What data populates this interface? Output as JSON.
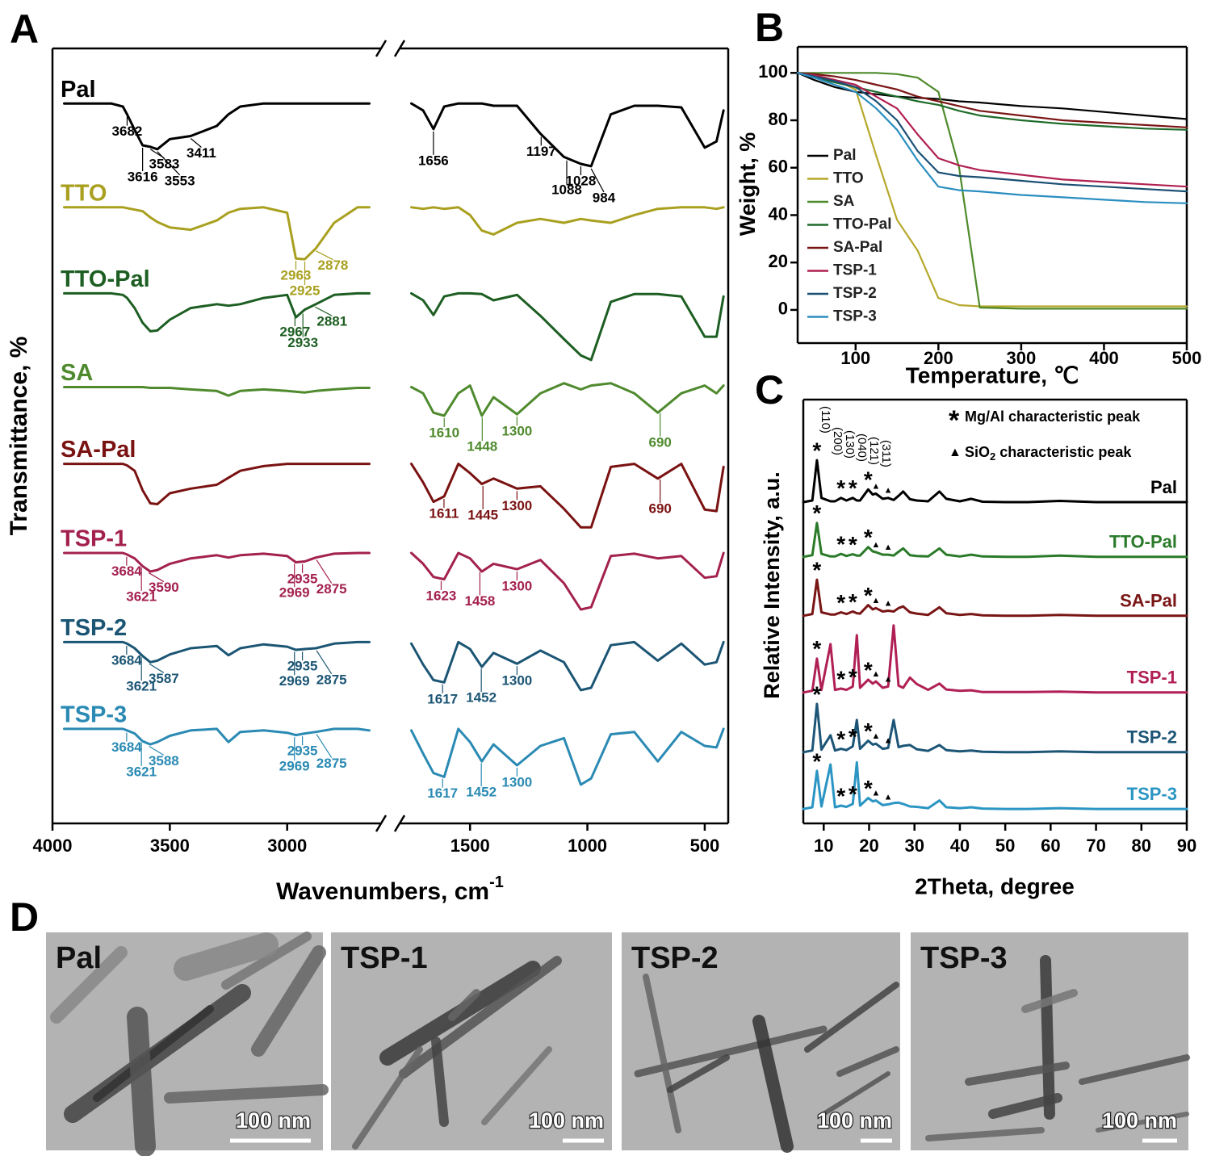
{
  "chart_data": [
    {
      "panel": "A",
      "type": "line",
      "series_labels": "start",
      "xlabel": {
        "text": "Wavenumbers, cm",
        "sup": "-1"
      },
      "ylabel": "Transmittance, %",
      "xlim": [
        4000,
        400
      ],
      "xbreak": [
        2600,
        1800
      ],
      "ylim": [
        0,
        100
      ],
      "xticks": [
        4000,
        3500,
        3000,
        1500,
        1000,
        500
      ],
      "x": [
        3950,
        3750,
        3700,
        3682,
        3650,
        3616,
        3583,
        3553,
        3500,
        3411,
        3300,
        3250,
        3200,
        3100,
        3000,
        2963,
        2925,
        2878,
        2800,
        2700,
        2650,
        1750,
        1700,
        1656,
        1610,
        1550,
        1500,
        1450,
        1400,
        1300,
        1200,
        1100,
        1028,
        984,
        900,
        800,
        700,
        600,
        500,
        450,
        420
      ],
      "series": [
        {
          "name": "Pal",
          "color": "#000000",
          "peaks": [
            3682,
            3616,
            3583,
            3553,
            3411,
            1656,
            1197,
            1088,
            1028,
            984
          ],
          "values": [
            92.9,
            92.9,
            92.5,
            91.5,
            89.5,
            87.5,
            87.3,
            87.0,
            88.3,
            88.7,
            90.0,
            91.5,
            92.5,
            92.9,
            92.9,
            92.9,
            92.9,
            92.9,
            92.9,
            92.9,
            92.9,
            92.9,
            92.0,
            89.6,
            92.5,
            92.9,
            92.9,
            92.9,
            92.6,
            92.6,
            89.0,
            86.0,
            85.1,
            84.8,
            91.5,
            92.6,
            92.6,
            92.4,
            87.2,
            88.0,
            92.0
          ]
        },
        {
          "name": "TTO",
          "color": "#a9a020",
          "peaks": [
            2963,
            2925,
            2878
          ],
          "values": [
            79.5,
            79.5,
            79.5,
            79.4,
            79.2,
            79.0,
            78.2,
            77.6,
            76.9,
            76.6,
            77.8,
            78.8,
            79.3,
            79.5,
            78.8,
            72.9,
            72.8,
            74.2,
            77.5,
            79.5,
            79.5,
            79.5,
            79.3,
            79.5,
            79.3,
            79.5,
            78.5,
            76.5,
            76.0,
            77.5,
            78.0,
            77.5,
            78.0,
            77.8,
            77.5,
            78.5,
            79.3,
            79.5,
            79.5,
            79.3,
            79.5
          ]
        },
        {
          "name": "TTO-Pal",
          "color": "#1d5e22",
          "peaks": [
            2967,
            2933,
            2881
          ],
          "values": [
            68.4,
            68.4,
            68.2,
            67.8,
            66.5,
            64.6,
            63.5,
            63.6,
            65.0,
            66.5,
            67.0,
            66.8,
            67.0,
            67.8,
            68.2,
            65.3,
            66.3,
            67.0,
            68.2,
            68.4,
            68.4,
            68.4,
            67.5,
            65.6,
            68.0,
            68.4,
            68.4,
            68.3,
            67.5,
            68.2,
            65.5,
            62.5,
            60.4,
            59.8,
            67.3,
            68.3,
            68.3,
            68.0,
            62.8,
            62.8,
            68.0
          ]
        },
        {
          "name": "SA",
          "color": "#4f8a2e",
          "peaks": [
            1610,
            1448,
            1300,
            690
          ],
          "values": [
            56.3,
            56.3,
            56.3,
            56.3,
            56.3,
            56.3,
            56.2,
            56.2,
            56.2,
            56.0,
            55.8,
            55.2,
            55.8,
            56.0,
            55.8,
            55.7,
            55.6,
            55.8,
            56.0,
            56.2,
            56.2,
            56.3,
            55.5,
            53.0,
            52.6,
            55.5,
            56.5,
            52.6,
            55.0,
            52.8,
            55.5,
            56.8,
            56.0,
            56.5,
            56.8,
            55.5,
            53.0,
            55.5,
            56.5,
            55.5,
            56.5
          ]
        },
        {
          "name": "SA-Pal",
          "color": "#7a1212",
          "peaks": [
            1611,
            1445,
            1300,
            690
          ],
          "values": [
            46.4,
            46.4,
            46.4,
            46.2,
            45.5,
            43.0,
            41.3,
            41.2,
            42.6,
            43.2,
            43.7,
            44.6,
            45.5,
            46.1,
            46.4,
            46.4,
            46.4,
            46.4,
            46.4,
            46.4,
            46.4,
            46.4,
            44.0,
            41.5,
            42.2,
            46.4,
            45.2,
            43.8,
            44.5,
            43.2,
            43.5,
            40.6,
            38.2,
            38.2,
            46.0,
            46.4,
            44.5,
            46.4,
            40.5,
            40.3,
            46.0
          ]
        },
        {
          "name": "TSP-1",
          "color": "#a3214f",
          "peaks": [
            3684,
            3621,
            3590,
            2969,
            2935,
            2875,
            1623,
            1458,
            1300
          ],
          "values": [
            34.9,
            34.9,
            34.9,
            34.7,
            34.2,
            33.2,
            32.5,
            32.7,
            33.5,
            34.2,
            34.6,
            34.3,
            34.6,
            34.8,
            34.5,
            33.7,
            33.8,
            34.3,
            34.8,
            34.9,
            34.9,
            34.9,
            33.5,
            31.8,
            31.5,
            34.9,
            34.2,
            32.5,
            33.5,
            32.8,
            34.0,
            31.0,
            27.6,
            27.9,
            34.5,
            34.8,
            34.2,
            34.5,
            31.7,
            31.9,
            34.9
          ]
        },
        {
          "name": "TSP-2",
          "color": "#1b5574",
          "peaks": [
            3684,
            3621,
            3587,
            2969,
            2935,
            2875,
            1617,
            1452,
            1300
          ],
          "values": [
            23.4,
            23.4,
            23.4,
            23.2,
            22.6,
            21.6,
            20.8,
            21.0,
            21.8,
            22.6,
            22.9,
            21.7,
            22.6,
            23.1,
            22.8,
            22.4,
            22.5,
            22.6,
            23.2,
            23.4,
            23.4,
            23.2,
            20.5,
            18.5,
            18.2,
            23.4,
            22.5,
            20.2,
            22.0,
            20.6,
            22.3,
            20.8,
            17.2,
            17.5,
            23.0,
            23.4,
            21.0,
            23.2,
            20.5,
            20.8,
            23.4
          ]
        },
        {
          "name": "TSP-3",
          "color": "#2a8ab3",
          "peaks": [
            3684,
            3621,
            3588,
            2969,
            2935,
            2875,
            1617,
            1452,
            1300
          ],
          "values": [
            12.2,
            12.2,
            12.2,
            12.0,
            11.6,
            10.6,
            10.2,
            10.5,
            11.3,
            12.0,
            12.2,
            10.5,
            11.8,
            12.0,
            11.7,
            11.4,
            11.6,
            11.8,
            12.2,
            12.2,
            12.0,
            12.0,
            9.0,
            6.5,
            6.0,
            12.2,
            10.5,
            8.0,
            10.2,
            7.5,
            10.0,
            11.0,
            5.0,
            5.8,
            11.5,
            11.8,
            8.0,
            11.8,
            10.0,
            9.8,
            12.2
          ]
        }
      ]
    },
    {
      "panel": "B",
      "type": "line",
      "legend": "lower left",
      "xlabel": "Temperature, ℃",
      "ylabel": "Weight, %",
      "xlim": [
        30,
        500
      ],
      "ylim": [
        -14,
        111
      ],
      "xticks": [
        100,
        200,
        300,
        400,
        500
      ],
      "yticks": [
        0,
        20,
        40,
        60,
        80,
        100
      ],
      "x": [
        30,
        50,
        75,
        100,
        125,
        150,
        175,
        200,
        225,
        250,
        300,
        350,
        400,
        450,
        500
      ],
      "series": [
        {
          "name": "Pal",
          "color": "#000000",
          "values": [
            100,
            97,
            94,
            92,
            91,
            90,
            89.5,
            89,
            88,
            87.5,
            86,
            85,
            83.5,
            82,
            80.5
          ]
        },
        {
          "name": "TTO",
          "color": "#b5a82a",
          "values": [
            100,
            99,
            97,
            93,
            65,
            38,
            25,
            5,
            2,
            1.5,
            1.5,
            1.5,
            1.5,
            1.5,
            1.5
          ]
        },
        {
          "name": "SA",
          "color": "#4e8a2a",
          "values": [
            100,
            100,
            100,
            100,
            100,
            99.5,
            98,
            92,
            60,
            1,
            0.5,
            0.5,
            0.5,
            0.5,
            0.5
          ]
        },
        {
          "name": "TTO-Pal",
          "color": "#1f6b2a",
          "values": [
            100,
            98,
            96,
            94,
            92,
            90,
            88,
            86.5,
            84,
            82,
            80,
            78.5,
            77.5,
            76.5,
            76
          ]
        },
        {
          "name": "SA-Pal",
          "color": "#7a1515",
          "values": [
            100,
            99.5,
            98.5,
            97,
            95,
            93,
            90,
            88,
            86,
            84,
            82,
            80,
            79,
            78,
            77
          ]
        },
        {
          "name": "TSP-1",
          "color": "#b02050",
          "values": [
            100,
            99,
            97,
            95,
            90,
            85,
            74,
            64,
            61,
            59,
            57,
            55,
            54,
            53,
            52
          ]
        },
        {
          "name": "TSP-2",
          "color": "#1a4f74",
          "values": [
            100,
            98.5,
            96.5,
            94,
            88,
            80,
            67,
            58,
            56.5,
            56,
            54.5,
            53,
            52,
            51,
            50
          ]
        },
        {
          "name": "TSP-3",
          "color": "#2a8ec0",
          "values": [
            100,
            98,
            95,
            92,
            85,
            76,
            63,
            52,
            50.5,
            50,
            48.5,
            47.5,
            46.5,
            45.5,
            45
          ]
        }
      ]
    },
    {
      "panel": "C",
      "type": "line",
      "series_labels": "end",
      "xlabel": "2Theta, degree",
      "ylabel": "Relative Intensity, a.u.",
      "xlim": [
        5.5,
        90
      ],
      "ylim": [
        0,
        100
      ],
      "xticks": [
        10,
        20,
        30,
        40,
        50,
        60,
        70,
        80,
        90
      ],
      "legend_items": [
        {
          "marker": "*",
          "text": "Mg/Al  characteristic peak"
        },
        {
          "marker": "▲",
          "text": "SiO",
          "sub": "2",
          "rest": " characteristic peak"
        }
      ],
      "hkl": [
        "(110)",
        "(200)",
        "(130)",
        "(040)",
        "(121)",
        "(311)"
      ],
      "stars": [
        8.5,
        13.8,
        16.4,
        19.8
      ],
      "triangles": [
        21.5,
        24.2
      ],
      "x": [
        5.5,
        7.5,
        8.5,
        9.5,
        11.5,
        12.5,
        13.8,
        15,
        16.4,
        17.3,
        18,
        19.8,
        20.8,
        21.5,
        23,
        24.2,
        25.4,
        26.5,
        27.5,
        29,
        30.5,
        33,
        35.5,
        37,
        40,
        42.5,
        45,
        50,
        55,
        62,
        70,
        80,
        90
      ],
      "series": [
        {
          "name": "Pal",
          "color": "#000000",
          "values": [
            75.8,
            76.2,
            85.7,
            76.8,
            76.0,
            76.0,
            76.8,
            76.2,
            76.8,
            76.2,
            76.2,
            78.8,
            77.6,
            77.8,
            76.6,
            76.8,
            76.3,
            77.3,
            78.3,
            76.5,
            76.2,
            76.0,
            78.3,
            76.6,
            76.0,
            76.6,
            75.9,
            75.8,
            75.8,
            76.1,
            75.8,
            75.8,
            75.8
          ]
        },
        {
          "name": "TTO-Pal",
          "color": "#2a7a2a",
          "values": [
            62.9,
            63.3,
            70.9,
            63.6,
            63.0,
            63.0,
            63.6,
            63.1,
            63.5,
            63.2,
            63.2,
            65.2,
            64.2,
            64.0,
            63.4,
            63.4,
            63.2,
            64.1,
            64.9,
            63.3,
            63.1,
            63.0,
            64.9,
            63.4,
            63.0,
            63.4,
            63.0,
            62.9,
            62.9,
            63.2,
            62.9,
            62.9,
            62.9
          ]
        },
        {
          "name": "SA-Pal",
          "color": "#7a1515",
          "values": [
            49.0,
            49.4,
            57.5,
            49.8,
            49.3,
            49.3,
            49.8,
            49.4,
            50.0,
            49.6,
            49.5,
            51.5,
            50.5,
            50.8,
            50.0,
            50.2,
            50.0,
            50.8,
            51.2,
            49.8,
            49.5,
            49.2,
            51.0,
            49.6,
            49.2,
            49.4,
            49.1,
            49.0,
            49.0,
            49.2,
            49.0,
            49.0,
            49.0
          ]
        },
        {
          "name": "TSP-1",
          "color": "#b02055",
          "values": [
            30.9,
            31.3,
            38.9,
            31.5,
            42.3,
            31.5,
            31.8,
            31.5,
            32.3,
            44.4,
            32.0,
            33.9,
            33.0,
            33.5,
            32.0,
            32.3,
            46.7,
            32.5,
            32.0,
            34.4,
            32.9,
            31.5,
            33.0,
            31.6,
            31.3,
            31.4,
            31.0,
            31.0,
            31.0,
            31.1,
            30.9,
            30.9,
            30.9
          ]
        },
        {
          "name": "TSP-2",
          "color": "#1d5577",
          "values": [
            16.8,
            17.2,
            28.2,
            17.4,
            20.8,
            17.2,
            17.6,
            17.3,
            18.2,
            24.4,
            17.6,
            19.5,
            18.6,
            18.8,
            17.6,
            17.8,
            24.4,
            18.0,
            18.3,
            18.5,
            17.5,
            17.1,
            18.5,
            17.3,
            17.0,
            17.2,
            16.9,
            16.8,
            16.8,
            17.0,
            16.8,
            16.8,
            16.8
          ]
        },
        {
          "name": "TSP-3",
          "color": "#2b95c3",
          "values": [
            3.4,
            3.8,
            12.4,
            4.0,
            13.9,
            3.8,
            4.2,
            3.9,
            4.6,
            14.4,
            4.2,
            6.0,
            5.2,
            5.4,
            4.3,
            4.5,
            4.8,
            4.9,
            4.6,
            4.0,
            3.9,
            3.6,
            5.4,
            3.8,
            3.6,
            3.8,
            3.5,
            3.4,
            3.4,
            3.6,
            3.4,
            3.4,
            3.4
          ]
        }
      ]
    }
  ],
  "panel_d": {
    "label": "D",
    "images": [
      {
        "title": "Pal",
        "scale": "100 nm"
      },
      {
        "title": "TSP-1",
        "scale": "100 nm"
      },
      {
        "title": "TSP-2",
        "scale": "100 nm"
      },
      {
        "title": "TSP-3",
        "scale": "100 nm"
      }
    ]
  }
}
